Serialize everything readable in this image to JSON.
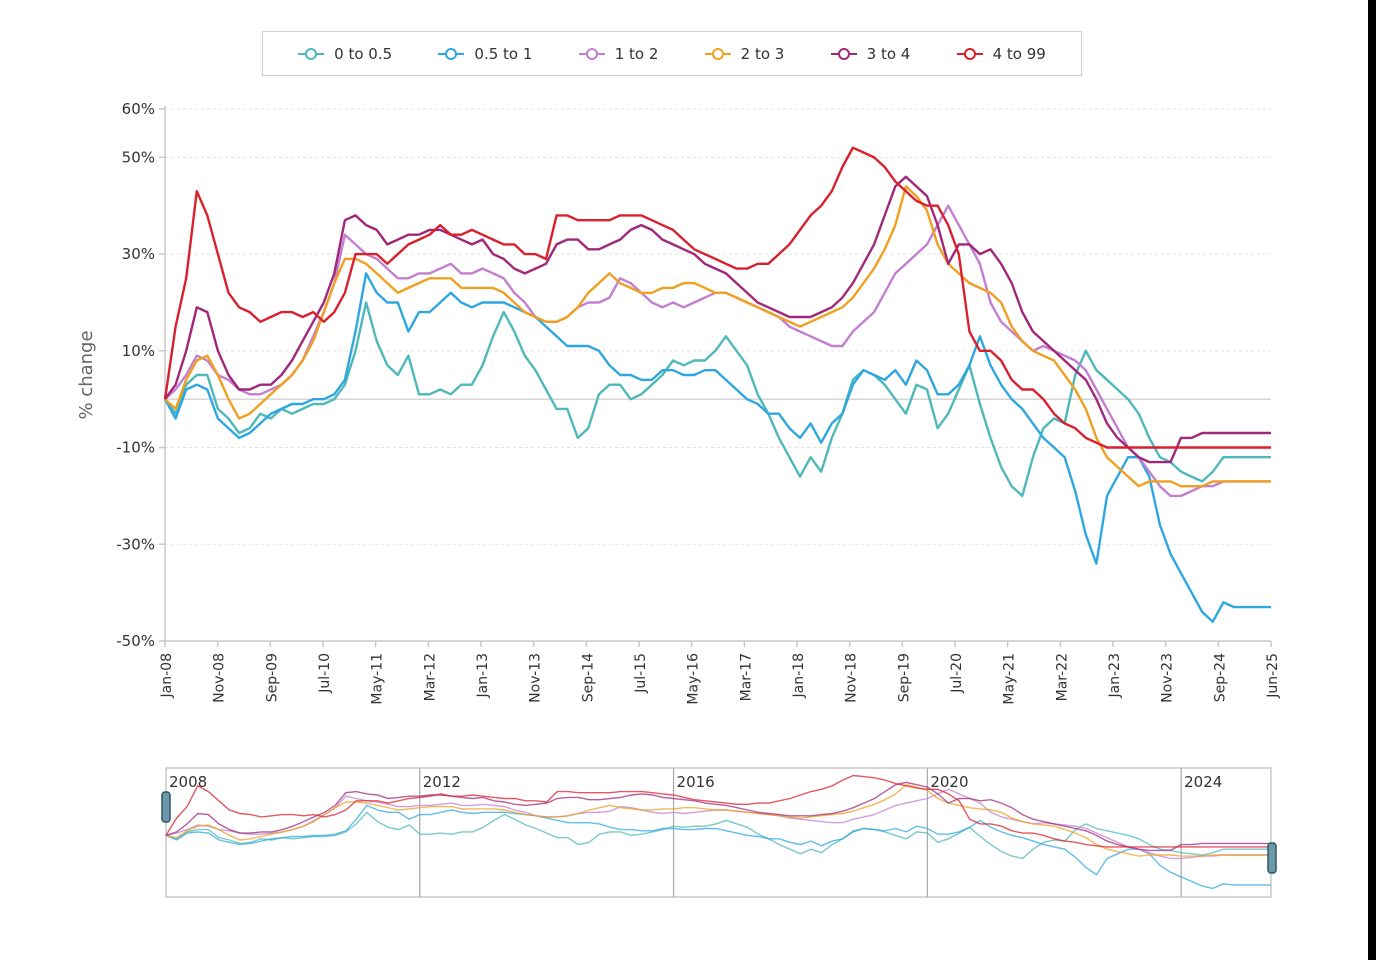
{
  "legend": [
    {
      "label": "0 to 0.5",
      "color": "#4fb8b8"
    },
    {
      "label": "0.5 to 1",
      "color": "#2ea7e0"
    },
    {
      "label": "1 to 2",
      "color": "#c37fd0"
    },
    {
      "label": "2 to 3",
      "color": "#f0a020"
    },
    {
      "label": "3 to 4",
      "color": "#a0287a"
    },
    {
      "label": "4 to 99",
      "color": "#d9202e"
    }
  ],
  "chart_data": {
    "type": "line",
    "title": "",
    "xlabel": "",
    "ylabel": "% change",
    "ylim": [
      -50,
      60
    ],
    "yticks": [
      60,
      50,
      30,
      10,
      -10,
      -30,
      -50
    ],
    "ytick_labels": [
      "60%",
      "50%",
      "30%",
      "10%",
      "-10%",
      "-30%",
      "-50%"
    ],
    "xtick_labels": [
      "Jan-08",
      "Nov-08",
      "Sep-09",
      "Jul-10",
      "May-11",
      "Mar-12",
      "Jan-13",
      "Nov-13",
      "Sep-14",
      "Jul-15",
      "May-16",
      "Mar-17",
      "Jan-18",
      "Nov-18",
      "Sep-19",
      "Jul-20",
      "May-21",
      "Mar-22",
      "Jan-23",
      "Nov-23",
      "Sep-24",
      "Jun-25"
    ],
    "grid": true,
    "legend_position": "top",
    "x_months_from_jan08": [
      0,
      2,
      4,
      6,
      8,
      10,
      12,
      14,
      16,
      18,
      20,
      22,
      24,
      26,
      28,
      30,
      32,
      34,
      36,
      38,
      40,
      42,
      44,
      46,
      48,
      50,
      52,
      54,
      56,
      58,
      60,
      62,
      64,
      66,
      68,
      70,
      72,
      74,
      76,
      78,
      80,
      82,
      84,
      86,
      88,
      90,
      92,
      94,
      96,
      98,
      100,
      102,
      104,
      106,
      108,
      110,
      112,
      114,
      116,
      118,
      120,
      122,
      124,
      126,
      128,
      130,
      132,
      134,
      136,
      138,
      140,
      142,
      144,
      146,
      148,
      150,
      152,
      154,
      156,
      158,
      160,
      162,
      164,
      166,
      168,
      170,
      172,
      174,
      176,
      178,
      180,
      182,
      184,
      186,
      188,
      190,
      192,
      194,
      196,
      198,
      200,
      202,
      204,
      206,
      208,
      209
    ],
    "series": [
      {
        "name": "0 to 0.5",
        "values": [
          0,
          -3,
          3,
          5,
          5,
          -2,
          -4,
          -7,
          -6,
          -3,
          -4,
          -2,
          -3,
          -2,
          -1,
          -1,
          0,
          3,
          10,
          20,
          12,
          7,
          5,
          9,
          1,
          1,
          2,
          1,
          3,
          3,
          7,
          13,
          18,
          14,
          9,
          6,
          2,
          -2,
          -2,
          -8,
          -6,
          1,
          3,
          3,
          0,
          1,
          3,
          5,
          8,
          7,
          8,
          8,
          10,
          13,
          10,
          7,
          1,
          -3,
          -8,
          -12,
          -16,
          -12,
          -15,
          -8,
          -3,
          4,
          6,
          5,
          3,
          0,
          -3,
          3,
          2,
          -6,
          -3,
          2,
          7,
          -1,
          -8,
          -14,
          -18,
          -20,
          -12,
          -6,
          -4,
          -5,
          5,
          10,
          6,
          4,
          2,
          0,
          -3,
          -8,
          -12,
          -13,
          -15,
          -16,
          -17,
          -15,
          -12,
          -12,
          -12,
          -12,
          -12,
          -12
        ]
      },
      {
        "name": "0.5 to 1",
        "values": [
          0,
          -4,
          2,
          3,
          2,
          -4,
          -6,
          -8,
          -7,
          -5,
          -3,
          -2,
          -1,
          -1,
          0,
          0,
          1,
          4,
          14,
          26,
          22,
          20,
          20,
          14,
          18,
          18,
          20,
          22,
          20,
          19,
          20,
          20,
          20,
          19,
          18,
          17,
          15,
          13,
          11,
          11,
          11,
          10,
          7,
          5,
          5,
          4,
          4,
          6,
          6,
          5,
          5,
          6,
          6,
          4,
          2,
          0,
          -1,
          -3,
          -3,
          -6,
          -8,
          -5,
          -9,
          -5,
          -3,
          3,
          6,
          5,
          4,
          6,
          3,
          8,
          6,
          1,
          1,
          3,
          7,
          13,
          7,
          3,
          0,
          -2,
          -5,
          -8,
          -10,
          -12,
          -19,
          -28,
          -34,
          -20,
          -16,
          -12,
          -12,
          -16,
          -26,
          -32,
          -36,
          -40,
          -44,
          -46,
          -42,
          -43,
          -43,
          -43,
          -43,
          -43
        ]
      },
      {
        "name": "1 to 2",
        "values": [
          0,
          2,
          5,
          9,
          8,
          5,
          4,
          2,
          1,
          1,
          2,
          3,
          5,
          8,
          13,
          18,
          24,
          34,
          32,
          30,
          29,
          27,
          25,
          25,
          26,
          26,
          27,
          28,
          26,
          26,
          27,
          26,
          25,
          22,
          20,
          17,
          16,
          16,
          17,
          19,
          20,
          20,
          21,
          25,
          24,
          22,
          20,
          19,
          20,
          19,
          20,
          21,
          22,
          22,
          21,
          20,
          19,
          18,
          17,
          15,
          14,
          13,
          12,
          11,
          11,
          14,
          16,
          18,
          22,
          26,
          28,
          30,
          32,
          36,
          40,
          36,
          32,
          28,
          20,
          16,
          14,
          12,
          10,
          11,
          10,
          9,
          8,
          6,
          2,
          -2,
          -6,
          -10,
          -12,
          -15,
          -18,
          -20,
          -20,
          -19,
          -18,
          -18,
          -17,
          -17,
          -17,
          -17,
          -17,
          -17
        ]
      },
      {
        "name": "2 to 3",
        "values": [
          0,
          -2,
          4,
          8,
          9,
          5,
          0,
          -4,
          -3,
          -1,
          1,
          3,
          5,
          8,
          12,
          18,
          24,
          29,
          29,
          28,
          26,
          24,
          22,
          23,
          24,
          25,
          25,
          25,
          23,
          23,
          23,
          23,
          22,
          20,
          18,
          17,
          16,
          16,
          17,
          19,
          22,
          24,
          26,
          24,
          23,
          22,
          22,
          23,
          23,
          24,
          24,
          23,
          22,
          22,
          21,
          20,
          19,
          18,
          17,
          16,
          15,
          16,
          17,
          18,
          19,
          21,
          24,
          27,
          31,
          36,
          44,
          42,
          39,
          32,
          28,
          26,
          24,
          23,
          22,
          20,
          15,
          12,
          10,
          9,
          8,
          5,
          2,
          -2,
          -8,
          -12,
          -14,
          -16,
          -18,
          -17,
          -17,
          -17,
          -18,
          -18,
          -18,
          -17,
          -17,
          -17,
          -17,
          -17,
          -17,
          -17
        ]
      },
      {
        "name": "3 to 4",
        "values": [
          0,
          3,
          10,
          19,
          18,
          10,
          5,
          2,
          2,
          3,
          3,
          5,
          8,
          12,
          16,
          20,
          26,
          37,
          38,
          36,
          35,
          32,
          33,
          34,
          34,
          35,
          35,
          34,
          33,
          32,
          33,
          30,
          29,
          27,
          26,
          27,
          28,
          32,
          33,
          33,
          31,
          31,
          32,
          33,
          35,
          36,
          35,
          33,
          32,
          31,
          30,
          28,
          27,
          26,
          24,
          22,
          20,
          19,
          18,
          17,
          17,
          17,
          18,
          19,
          21,
          24,
          28,
          32,
          38,
          44,
          46,
          44,
          42,
          36,
          28,
          32,
          32,
          30,
          31,
          28,
          24,
          18,
          14,
          12,
          10,
          8,
          6,
          4,
          0,
          -5,
          -8,
          -10,
          -12,
          -13,
          -13,
          -13,
          -8,
          -8,
          -7,
          -7,
          -7,
          -7,
          -7,
          -7,
          -7,
          -7
        ]
      },
      {
        "name": "4 to 99",
        "values": [
          0,
          15,
          25,
          43,
          38,
          30,
          22,
          19,
          18,
          16,
          17,
          18,
          18,
          17,
          18,
          16,
          18,
          22,
          30,
          30,
          30,
          28,
          30,
          32,
          33,
          34,
          36,
          34,
          34,
          35,
          34,
          33,
          32,
          32,
          30,
          30,
          29,
          38,
          38,
          37,
          37,
          37,
          37,
          38,
          38,
          38,
          37,
          36,
          35,
          33,
          31,
          30,
          29,
          28,
          27,
          27,
          28,
          28,
          30,
          32,
          35,
          38,
          40,
          43,
          48,
          52,
          51,
          50,
          48,
          45,
          43,
          41,
          40,
          40,
          36,
          30,
          14,
          10,
          10,
          8,
          4,
          2,
          2,
          0,
          -3,
          -5,
          -6,
          -8,
          -9,
          -10,
          -10,
          -10,
          -10,
          -10,
          -10,
          -10,
          -10,
          -10,
          -10,
          -10,
          -10,
          -10,
          -10,
          -10,
          -10,
          -10
        ]
      }
    ]
  },
  "navigator": {
    "years": [
      "2008",
      "2012",
      "2016",
      "2020",
      "2024"
    ],
    "range_start_fraction": 0,
    "range_end_fraction": 1
  }
}
